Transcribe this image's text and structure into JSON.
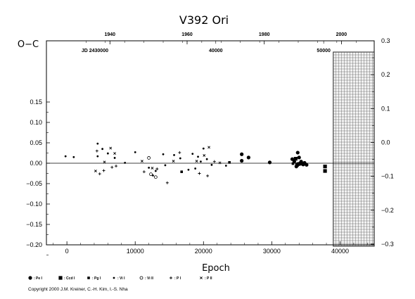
{
  "chart_data": {
    "type": "scatter",
    "title": "V392  Ori",
    "xlabel": "Epoch",
    "ylabel": "O−C",
    "xlim": [
      -3000,
      45000
    ],
    "ylim": [
      -0.2,
      0.3
    ],
    "x_ticks": [
      0,
      10000,
      20000,
      30000,
      40000
    ],
    "x_tick_labels": [
      "0",
      "10000",
      "20000",
      "30000",
      "40000"
    ],
    "y_ticks": [
      -0.2,
      -0.15,
      -0.1,
      -0.05,
      0.0,
      0.05,
      0.1,
      0.15
    ],
    "y_tick_labels": [
      "−0.20",
      "−0.15",
      "−0.10",
      "−0.05",
      "0.00",
      "0.05",
      "0.10",
      "0.15"
    ],
    "y2_ticks": [
      -0.3,
      -0.2,
      -0.1,
      0.0,
      0.1,
      0.2,
      0.3
    ],
    "y2_tick_labels": [
      "−0.3",
      "−0.2",
      "−0.1",
      "0.0",
      "0.1",
      "0.2",
      "0.3"
    ],
    "top_year_axis": {
      "ticks": [
        {
          "label": "1940",
          "epoch": 6300
        },
        {
          "label": "1960",
          "epoch": 17600
        },
        {
          "label": "1980",
          "epoch": 28900
        },
        {
          "label": "2000",
          "epoch": 40200
        }
      ]
    },
    "jd_axis": {
      "prefix": "JD 2430000",
      "ticks": [
        {
          "label": "40000",
          "epoch": 21800
        },
        {
          "label": "50000",
          "epoch": 37600
        }
      ],
      "prefix_epoch": 4100
    },
    "forecast_region": {
      "from_epoch": 39000
    },
    "zero_line": 0.0,
    "legend": [
      {
        "marker": "filled-circle-large",
        "label": ": Pe I"
      },
      {
        "marker": "filled-square",
        "label": ": Ccd I"
      },
      {
        "marker": "filled-square-small",
        "label": ": Pg I"
      },
      {
        "marker": "filled-circle-small",
        "label": ": Vi I"
      },
      {
        "marker": "open-circle",
        "label": ": Vi II"
      },
      {
        "marker": "plus",
        "label": ": P I"
      },
      {
        "marker": "cross",
        "label": ": P II"
      }
    ],
    "series": [
      {
        "name": "Vi I",
        "marker": "dot",
        "points": [
          [
            -200,
            0.017
          ],
          [
            1000,
            0.015
          ],
          [
            4500,
            0.048
          ],
          [
            4500,
            0.017
          ],
          [
            5200,
            0.035
          ],
          [
            6000,
            0.024
          ],
          [
            7000,
            0.013
          ],
          [
            8500,
            0.001
          ],
          [
            10000,
            0.027
          ],
          [
            12000,
            -0.011
          ],
          [
            12600,
            -0.03
          ],
          [
            13000,
            -0.019
          ],
          [
            14100,
            0.022
          ],
          [
            14400,
            -0.005
          ],
          [
            15700,
            0.02
          ],
          [
            16600,
            0.012
          ],
          [
            17800,
            -0.016
          ],
          [
            18400,
            0.023
          ],
          [
            18800,
            -0.013
          ],
          [
            19200,
            0.016
          ],
          [
            19600,
            0.004
          ],
          [
            20000,
            0.036
          ],
          [
            20500,
            0.01
          ],
          [
            21200,
            -0.004
          ],
          [
            23300,
            -0.006
          ]
        ]
      },
      {
        "name": "Pe I",
        "marker": "big-dot",
        "points": [
          [
            25600,
            0.022
          ],
          [
            25600,
            0.006
          ],
          [
            26600,
            0.014
          ],
          [
            29700,
            0.002
          ],
          [
            33000,
            0.01
          ],
          [
            33300,
            0.004
          ],
          [
            33600,
            -0.008
          ],
          [
            33800,
            0.026
          ],
          [
            34000,
            0.014
          ],
          [
            34300,
            0.004
          ],
          [
            34400,
            -0.001
          ],
          [
            34600,
            -0.003
          ],
          [
            34800,
            0.001
          ],
          [
            35100,
            -0.004
          ]
        ]
      },
      {
        "name": "Ccd I",
        "marker": "square",
        "points": [
          [
            33500,
            0.011
          ],
          [
            33700,
            -0.004
          ],
          [
            33900,
            -0.002
          ],
          [
            34200,
            -0.001
          ],
          [
            37800,
            -0.008
          ],
          [
            37800,
            -0.019
          ]
        ]
      },
      {
        "name": "Pg I",
        "marker": "small-square",
        "points": [
          [
            16800,
            -0.021
          ],
          [
            23800,
            0.002
          ],
          [
            33100,
            -0.001
          ]
        ]
      },
      {
        "name": "Vi II",
        "marker": "open-circle",
        "points": [
          [
            12000,
            0.013
          ],
          [
            12300,
            -0.027
          ],
          [
            13000,
            -0.034
          ]
        ]
      },
      {
        "name": "P I",
        "marker": "plus",
        "points": [
          [
            4400,
            0.03
          ],
          [
            4800,
            -0.026
          ],
          [
            5400,
            -0.018
          ],
          [
            6600,
            -0.01
          ],
          [
            7200,
            -0.007
          ],
          [
            11300,
            -0.021
          ],
          [
            13200,
            -0.014
          ],
          [
            14700,
            -0.048
          ],
          [
            16500,
            0.026
          ],
          [
            19400,
            -0.025
          ],
          [
            20600,
            -0.031
          ],
          [
            21600,
            0.004
          ]
        ]
      },
      {
        "name": "P II",
        "marker": "cross",
        "points": [
          [
            4200,
            -0.019
          ],
          [
            5500,
            0.003
          ],
          [
            6400,
            0.037
          ],
          [
            7000,
            0.024
          ],
          [
            11000,
            0.005
          ],
          [
            12500,
            -0.012
          ],
          [
            15600,
            0.005
          ],
          [
            19000,
            0.005
          ],
          [
            20100,
            0.019
          ],
          [
            20800,
            0.039
          ],
          [
            22400,
            0.001
          ]
        ]
      }
    ]
  },
  "copyright": "Copyright 2000 J.M. Kreiner, C.-H. Kim, I.-S. Nha"
}
